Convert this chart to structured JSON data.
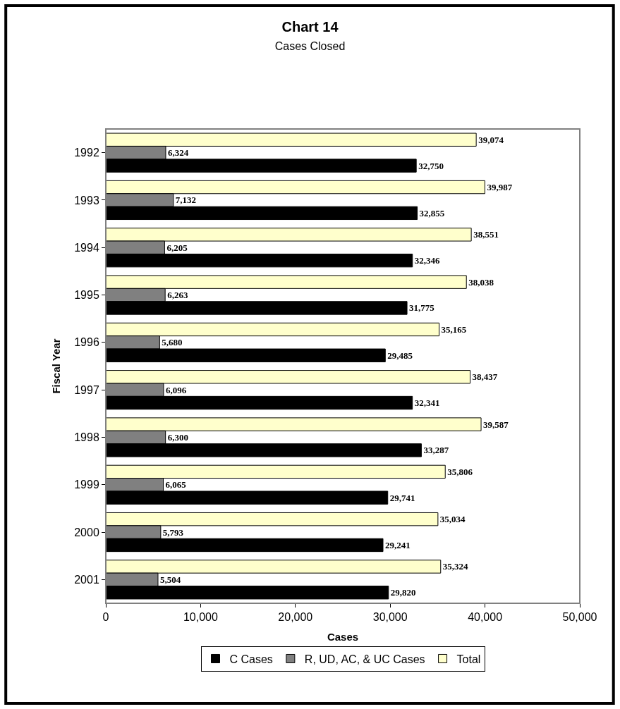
{
  "chart_data": {
    "type": "bar",
    "orientation": "horizontal",
    "title": "Chart 14",
    "subtitle": "Cases Closed",
    "xlabel": "Cases",
    "ylabel": "Fiscal Year",
    "categories": [
      "1992",
      "1993",
      "1994",
      "1995",
      "1996",
      "1997",
      "1998",
      "1999",
      "2000",
      "2001"
    ],
    "series": [
      {
        "name": "C Cases",
        "color": "#000000",
        "values": [
          32750,
          32855,
          32346,
          31775,
          29485,
          32341,
          33287,
          29741,
          29241,
          29820
        ],
        "value_labels": [
          "32,750",
          "32,855",
          "32,346",
          "31,775",
          "29,485",
          "32,341",
          "33,287",
          "29,741",
          "29,241",
          "29,820"
        ]
      },
      {
        "name": "R, UD, AC, & UC Cases",
        "color": "#808080",
        "values": [
          6324,
          7132,
          6205,
          6263,
          5680,
          6096,
          6300,
          6065,
          5793,
          5504
        ],
        "value_labels": [
          "6,324",
          "7,132",
          "6,205",
          "6,263",
          "5,680",
          "6,096",
          "6,300",
          "6,065",
          "5,793",
          "5,504"
        ]
      },
      {
        "name": "Total",
        "color": "#ffffcc",
        "values": [
          39074,
          39987,
          38551,
          38038,
          35165,
          38437,
          39587,
          35806,
          35034,
          35324
        ],
        "value_labels": [
          "39,074",
          "39,987",
          "38,551",
          "38,038",
          "35,165",
          "38,437",
          "39,587",
          "35,806",
          "35,034",
          "35,324"
        ]
      }
    ],
    "xlim": [
      0,
      50000
    ],
    "xticks": [
      {
        "value": 0,
        "label": "0"
      },
      {
        "value": 10000,
        "label": "10,000"
      },
      {
        "value": 20000,
        "label": "20,000"
      },
      {
        "value": 30000,
        "label": "30,000"
      },
      {
        "value": 40000,
        "label": "40,000"
      },
      {
        "value": 50000,
        "label": "50,000"
      }
    ],
    "legend": "bottom"
  }
}
